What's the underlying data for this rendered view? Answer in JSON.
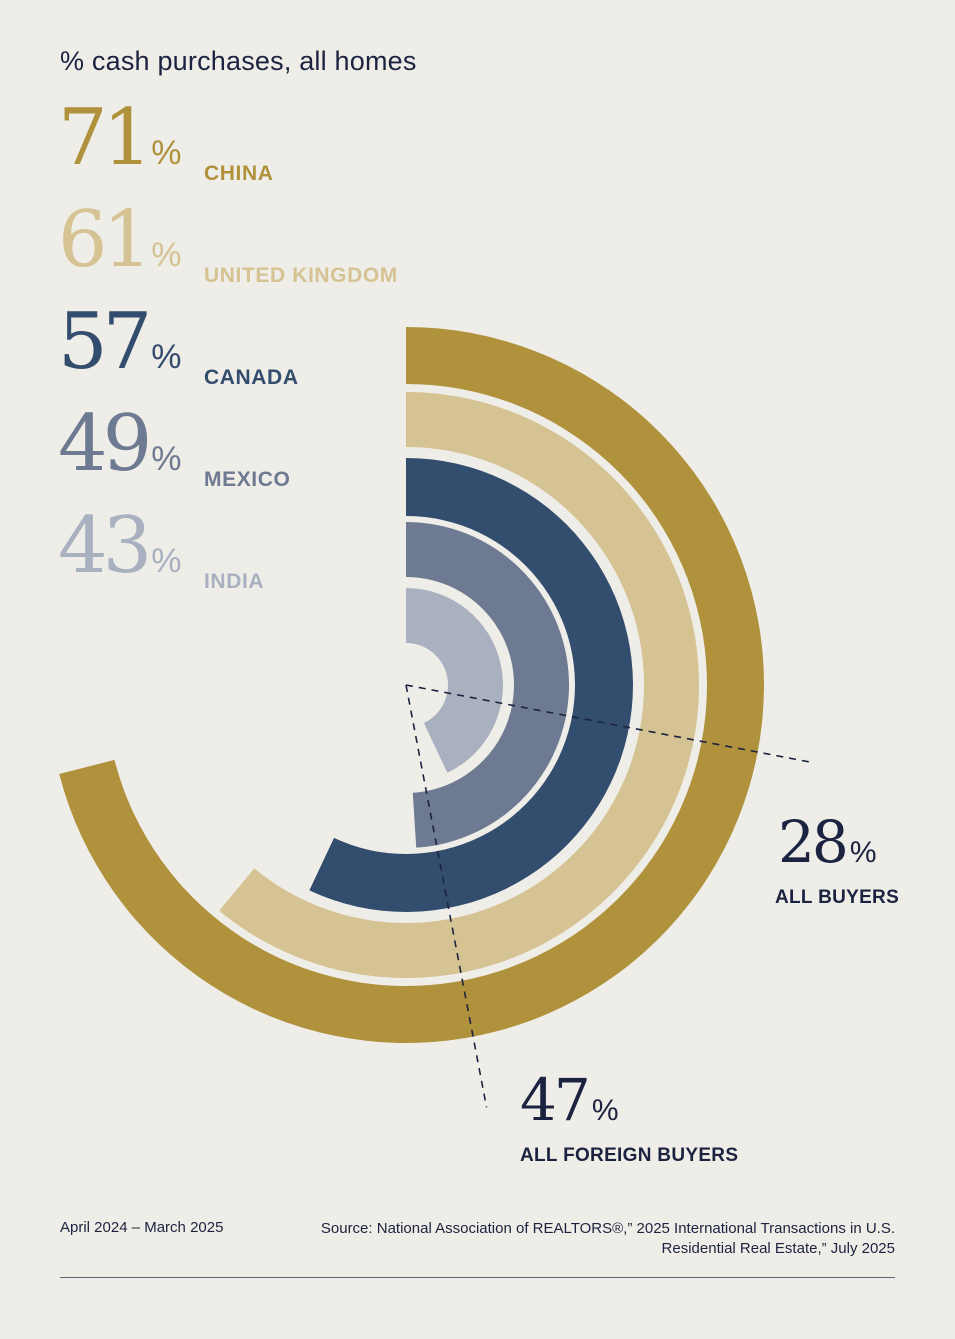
{
  "title": "% cash purchases, all homes",
  "colors": {
    "background": "#efede7",
    "text": "#1c2340",
    "china": "#b0913c",
    "united_kingdom": "#d6c393",
    "canada": "#334d6e",
    "mexico": "#6e7a91",
    "india": "#a9b1c0"
  },
  "chart_data": {
    "type": "radial-bar",
    "unit": "%",
    "series": [
      {
        "name": "CHINA",
        "value": 71,
        "color": "#b0913c"
      },
      {
        "name": "UNITED KINGDOM",
        "value": 61,
        "color": "#d6c393"
      },
      {
        "name": "CANADA",
        "value": 57,
        "color": "#334d6e"
      },
      {
        "name": "MEXICO",
        "value": 49,
        "color": "#6e7a91"
      },
      {
        "name": "INDIA",
        "value": 43,
        "color": "#a9b1c0"
      }
    ],
    "reference_lines": [
      {
        "name": "ALL BUYERS",
        "value": 28
      },
      {
        "name": "ALL FOREIGN BUYERS",
        "value": 47
      }
    ]
  },
  "footer": {
    "period": "April 2024 – March 2025",
    "source_line1": "Source: National Association of REALTORS®,” 2025 International Transactions in U.S.",
    "source_line2": "Residential Real Estate,” July 2025"
  }
}
